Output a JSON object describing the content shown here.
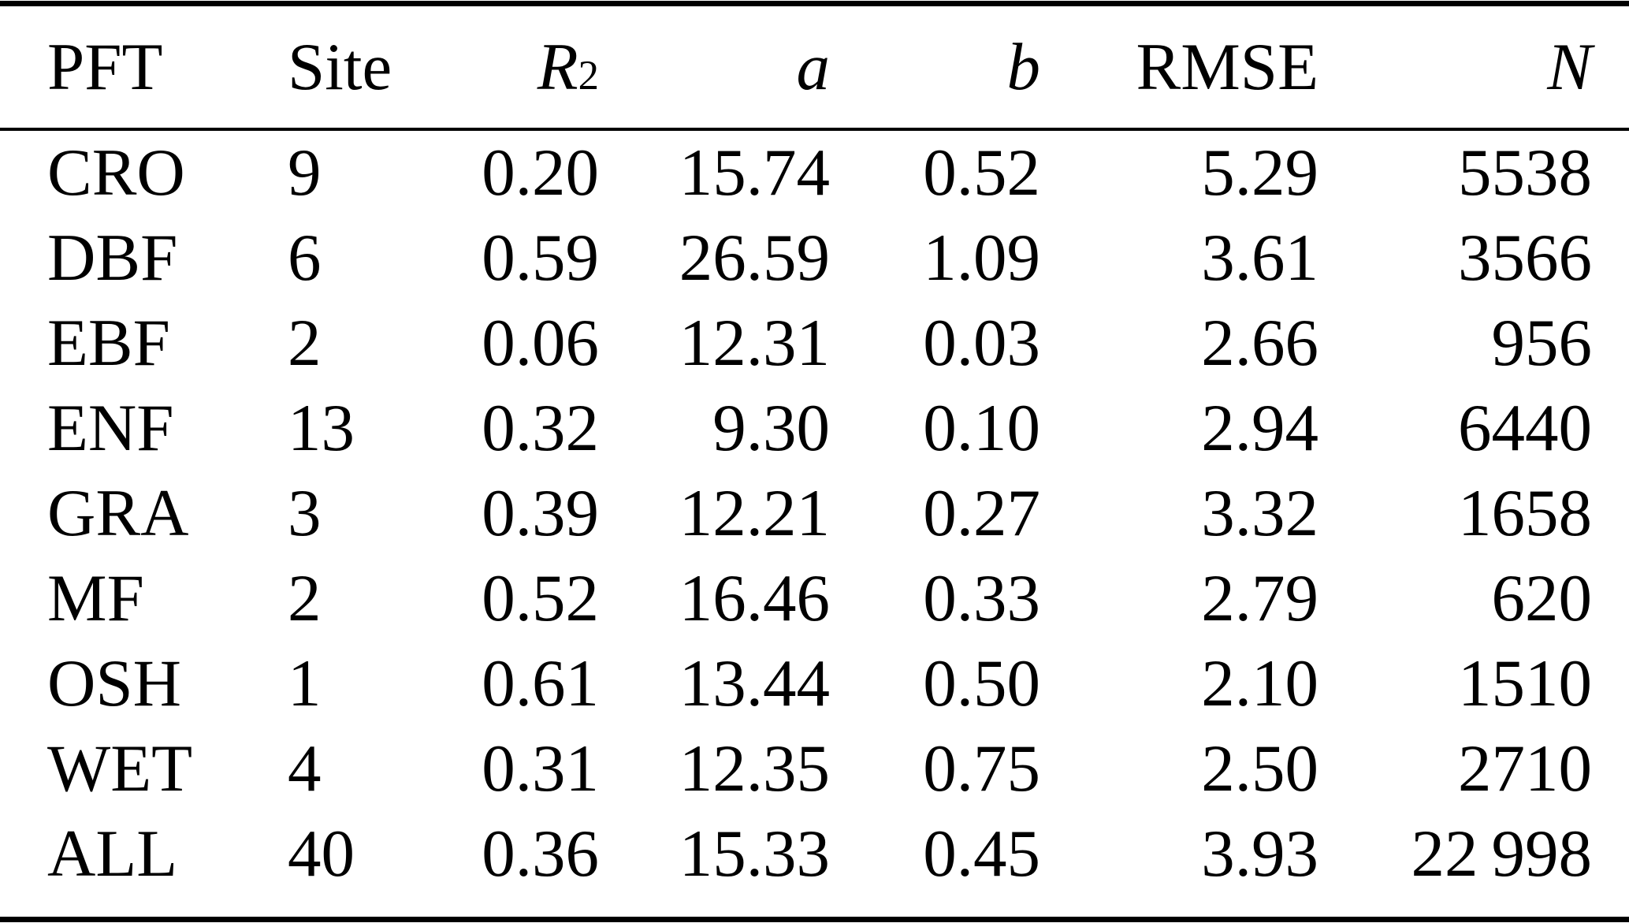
{
  "page": {
    "background_color": "#ffffff",
    "text_color": "#000000",
    "rule_color": "#000000"
  },
  "table": {
    "columns": [
      {
        "key": "pft",
        "label": "PFT",
        "align": "left",
        "italic": false
      },
      {
        "key": "site",
        "label": "Site",
        "align": "left",
        "italic": false
      },
      {
        "key": "r2",
        "label": "R",
        "sup": "2",
        "align": "right",
        "italic": true
      },
      {
        "key": "a",
        "label": "a",
        "align": "right",
        "italic": true
      },
      {
        "key": "b",
        "label": "b",
        "align": "right",
        "italic": true
      },
      {
        "key": "rmse",
        "label": "RMSE",
        "align": "right",
        "italic": false
      },
      {
        "key": "n",
        "label": "N",
        "align": "right",
        "italic": true
      }
    ],
    "rows": [
      {
        "pft": "CRO",
        "site": "9",
        "r2": "0.20",
        "a": "15.74",
        "b": "0.52",
        "rmse": "5.29",
        "n": "5538"
      },
      {
        "pft": "DBF",
        "site": "6",
        "r2": "0.59",
        "a": "26.59",
        "b": "1.09",
        "rmse": "3.61",
        "n": "3566"
      },
      {
        "pft": "EBF",
        "site": "2",
        "r2": "0.06",
        "a": "12.31",
        "b": "0.03",
        "rmse": "2.66",
        "n": "956"
      },
      {
        "pft": "ENF",
        "site": "13",
        "r2": "0.32",
        "a": "9.30",
        "b": "0.10",
        "rmse": "2.94",
        "n": "6440"
      },
      {
        "pft": "GRA",
        "site": "3",
        "r2": "0.39",
        "a": "12.21",
        "b": "0.27",
        "rmse": "3.32",
        "n": "1658"
      },
      {
        "pft": "MF",
        "site": "2",
        "r2": "0.52",
        "a": "16.46",
        "b": "0.33",
        "rmse": "2.79",
        "n": "620"
      },
      {
        "pft": "OSH",
        "site": "1",
        "r2": "0.61",
        "a": "13.44",
        "b": "0.50",
        "rmse": "2.10",
        "n": "1510"
      },
      {
        "pft": "WET",
        "site": "4",
        "r2": "0.31",
        "a": "12.35",
        "b": "0.75",
        "rmse": "2.50",
        "n": "2710"
      },
      {
        "pft": "ALL",
        "site": "40",
        "r2": "0.36",
        "a": "15.33",
        "b": "0.45",
        "rmse": "3.93",
        "n": "22 998"
      }
    ]
  }
}
